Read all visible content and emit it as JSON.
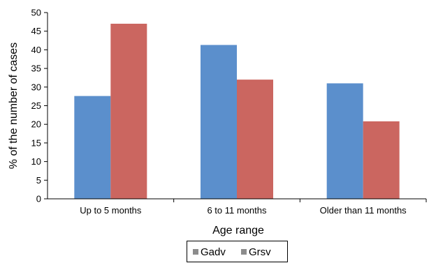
{
  "chart_data": {
    "type": "bar",
    "title": "",
    "xlabel": "Age range",
    "ylabel": "% of the number of cases",
    "categories": [
      "Up to 5 months",
      "6 to 11 months",
      "Older than 11 months"
    ],
    "series": [
      {
        "name": "Gadv",
        "values": [
          27.6,
          41.3,
          31.0
        ],
        "color": "#5b8fcc"
      },
      {
        "name": "Grsv",
        "values": [
          47.0,
          32.0,
          20.8
        ],
        "color": "#cb6660"
      }
    ],
    "ylim": [
      0,
      50
    ],
    "yticks": [
      0,
      5,
      10,
      15,
      20,
      25,
      30,
      35,
      40,
      45,
      50
    ],
    "grid": false,
    "legend_position": "bottom",
    "legend_marker_color": "#8c8c8c"
  }
}
